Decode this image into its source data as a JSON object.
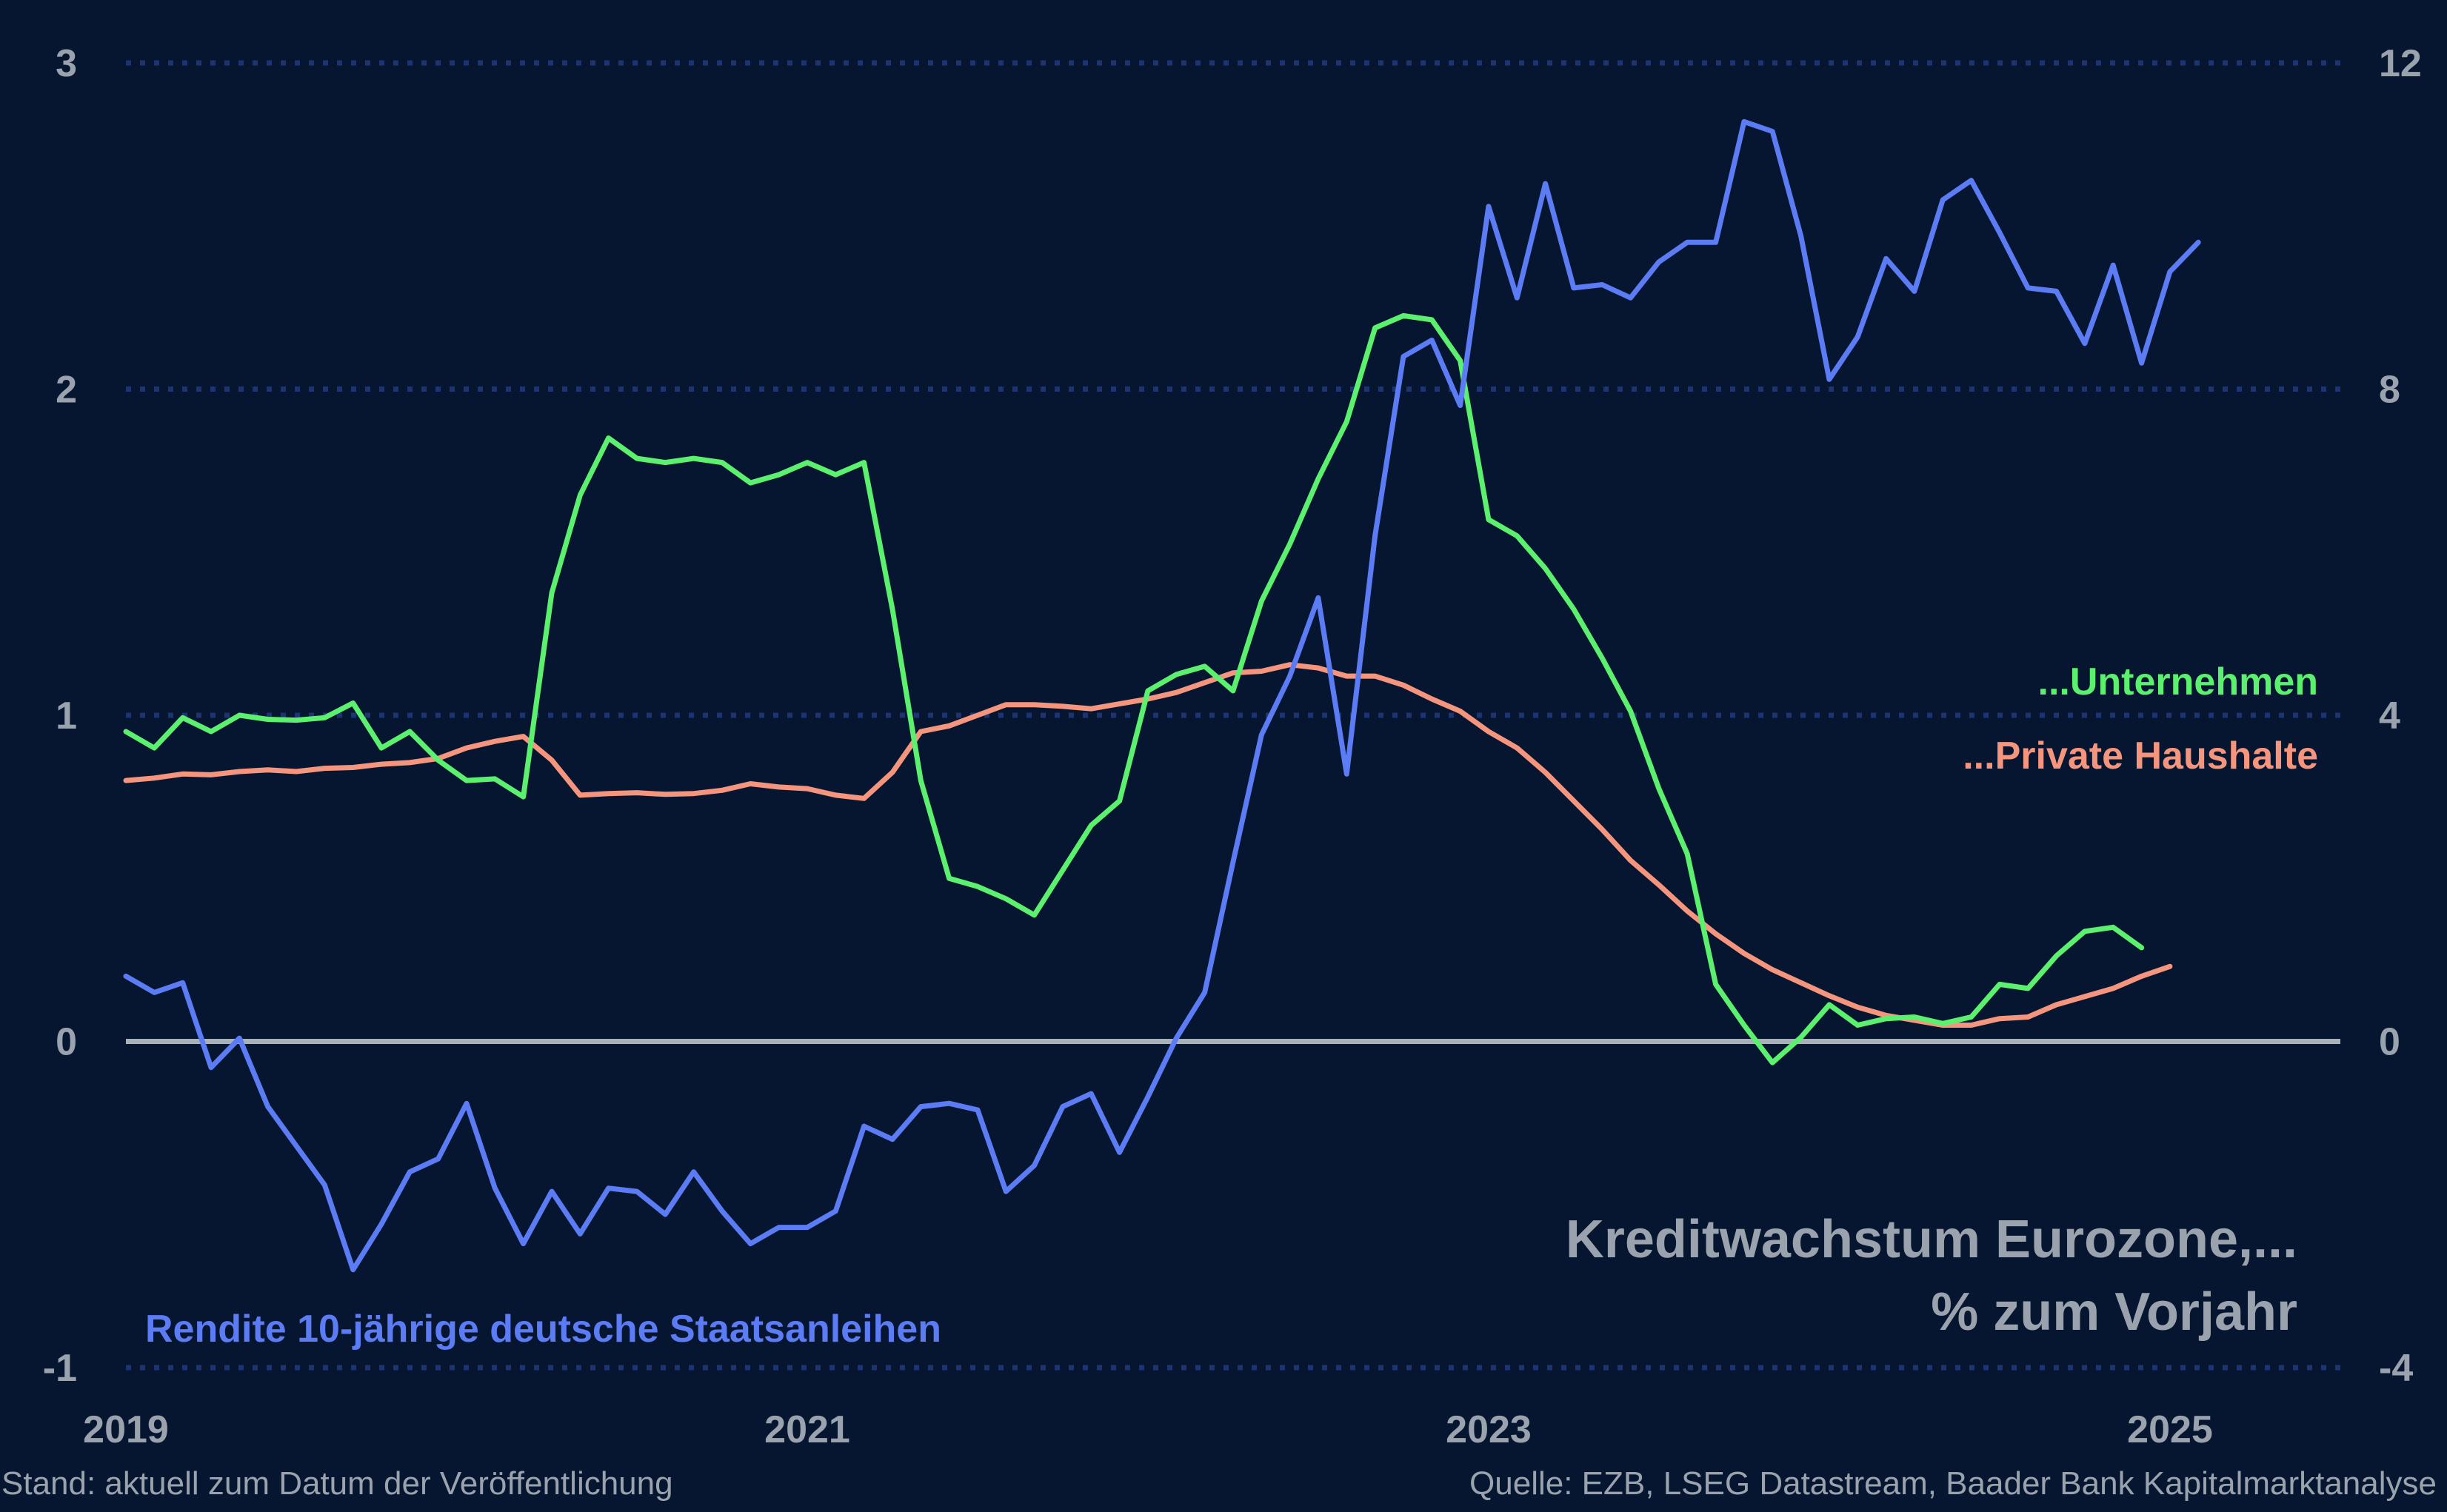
{
  "chart_data": {
    "type": "line",
    "title": "Kreditwachstum Eurozone,...",
    "subtitle": "% zum Vorjahr",
    "left_axis": {
      "ylim": [
        -1,
        3
      ],
      "ticks": [
        "3",
        "2",
        "1",
        "0",
        "-1"
      ]
    },
    "right_axis": {
      "ylim": [
        -4,
        12
      ],
      "ticks": [
        "12",
        "8",
        "4",
        "0",
        "-4"
      ]
    },
    "x_axis": {
      "range": [
        2019.0,
        2025.5
      ],
      "ticks": [
        "2019",
        "2021",
        "2023",
        "2025"
      ]
    },
    "grid": "dotted horizontal",
    "colors": {
      "background": "#061630",
      "rendite": "#5b7cf5",
      "unternehmen": "#5cf06f",
      "haushalte": "#f5957e",
      "grid": "#1e3470",
      "zero_line": "#a8b0b8",
      "text": "#9aa3ad"
    },
    "series": [
      {
        "name": "Rendite 10-jährige deutsche Staatsanleihen",
        "axis": "left",
        "color": "#5b7cf5",
        "label_position": "bottom-left",
        "x_start": 2019.0,
        "x_step": 0.08333,
        "values": [
          0.2,
          0.15,
          0.18,
          -0.08,
          0.01,
          -0.2,
          -0.32,
          -0.44,
          -0.7,
          -0.56,
          -0.4,
          -0.36,
          -0.19,
          -0.45,
          -0.62,
          -0.46,
          -0.59,
          -0.45,
          -0.46,
          -0.53,
          -0.4,
          -0.52,
          -0.62,
          -0.57,
          -0.57,
          -0.52,
          -0.26,
          -0.3,
          -0.2,
          -0.19,
          -0.21,
          -0.46,
          -0.38,
          -0.2,
          -0.16,
          -0.34,
          -0.17,
          0.01,
          0.15,
          0.55,
          0.94,
          1.12,
          1.36,
          0.82,
          1.55,
          2.1,
          2.15,
          1.95,
          2.56,
          2.28,
          2.63,
          2.31,
          2.32,
          2.28,
          2.39,
          2.45,
          2.45,
          2.82,
          2.79,
          2.47,
          2.03,
          2.16,
          2.4,
          2.3,
          2.58,
          2.64,
          2.48,
          2.31,
          2.3,
          2.14,
          2.38,
          2.08,
          2.36,
          2.45
        ]
      },
      {
        "name": "...Unternehmen",
        "axis": "right",
        "color": "#5cf06f",
        "label_position": "right",
        "x_start": 2019.0,
        "x_step": 0.08333,
        "values": [
          3.8,
          3.6,
          3.97,
          3.8,
          4.0,
          3.95,
          3.94,
          3.97,
          4.15,
          3.6,
          3.8,
          3.45,
          3.2,
          3.22,
          3.0,
          5.5,
          6.7,
          7.4,
          7.15,
          7.1,
          7.15,
          7.1,
          6.85,
          6.95,
          7.1,
          6.95,
          7.1,
          5.3,
          3.2,
          2.0,
          1.9,
          1.75,
          1.55,
          2.1,
          2.65,
          2.95,
          4.3,
          4.5,
          4.6,
          4.3,
          5.4,
          6.1,
          6.9,
          7.6,
          8.75,
          8.9,
          8.85,
          8.35,
          6.4,
          6.2,
          5.8,
          5.3,
          4.7,
          4.05,
          3.1,
          2.3,
          0.7,
          0.2,
          -0.26,
          0.05,
          0.45,
          0.2,
          0.28,
          0.3,
          0.22,
          0.3,
          0.7,
          0.65,
          1.05,
          1.35,
          1.4,
          1.15
        ]
      },
      {
        "name": "...Private Haushalte",
        "axis": "right",
        "color": "#f5957e",
        "label_position": "right",
        "x_start": 2019.0,
        "x_step": 0.08333,
        "values": [
          3.2,
          3.23,
          3.28,
          3.27,
          3.31,
          3.33,
          3.31,
          3.35,
          3.36,
          3.4,
          3.42,
          3.47,
          3.6,
          3.68,
          3.74,
          3.45,
          3.02,
          3.04,
          3.05,
          3.03,
          3.04,
          3.08,
          3.16,
          3.12,
          3.1,
          3.02,
          2.98,
          3.3,
          3.8,
          3.87,
          4.0,
          4.13,
          4.13,
          4.11,
          4.08,
          4.14,
          4.2,
          4.28,
          4.4,
          4.52,
          4.54,
          4.62,
          4.58,
          4.48,
          4.48,
          4.37,
          4.2,
          4.05,
          3.8,
          3.6,
          3.3,
          2.95,
          2.6,
          2.22,
          1.92,
          1.6,
          1.32,
          1.08,
          0.88,
          0.72,
          0.56,
          0.42,
          0.32,
          0.26,
          0.2,
          0.2,
          0.28,
          0.3,
          0.45,
          0.55,
          0.65,
          0.8,
          0.92
        ]
      }
    ],
    "annotations": {
      "rendite_label": "Rendite 10-jährige deutsche Staatsanleihen",
      "unternehmen_label": "...Unternehmen",
      "haushalte_label": "...Private Haushalte"
    }
  },
  "footer": {
    "left": "Stand: aktuell zum Datum der Veröffentlichung",
    "right": "Quelle: EZB, LSEG Datastream, Baader Bank Kapitalmarktanalyse"
  }
}
